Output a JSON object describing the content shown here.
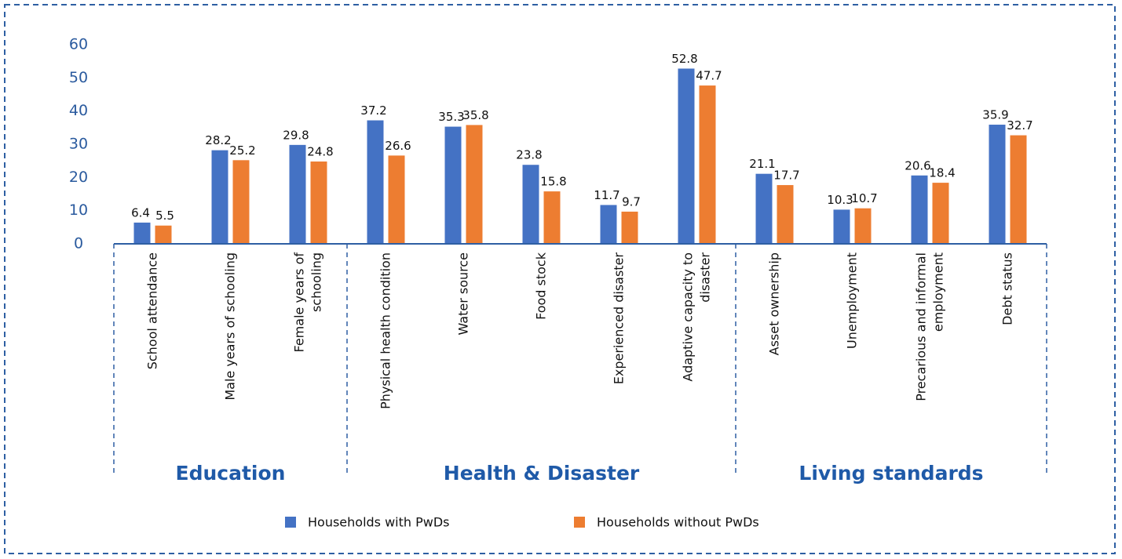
{
  "chart_data": {
    "type": "bar",
    "groups": [
      {
        "name": "Education",
        "categories": [
          "School attendance",
          "Male years of schooling",
          "Female years of\nschooling"
        ]
      },
      {
        "name": "Health & Disaster",
        "categories": [
          "Physical health condition",
          "Water source",
          "Food stock",
          "Experienced disaster",
          "Adaptive capacity to\ndisaster"
        ]
      },
      {
        "name": "Living standards",
        "categories": [
          "Asset ownership",
          "Unemployment",
          "Precarious and informal\nemployment",
          "Debt status"
        ]
      }
    ],
    "series": [
      {
        "name": "Households with PwDs",
        "color": "#4472c4",
        "values": [
          6.4,
          28.2,
          29.8,
          37.2,
          35.3,
          23.8,
          11.7,
          52.8,
          21.1,
          10.3,
          20.6,
          35.9
        ]
      },
      {
        "name": "Households without PwDs",
        "color": "#ed7d31",
        "values": [
          5.5,
          25.2,
          24.8,
          26.6,
          35.8,
          15.8,
          9.7,
          47.7,
          17.7,
          10.7,
          18.4,
          32.7
        ]
      }
    ],
    "ylim": [
      0,
      60
    ],
    "yticks": [
      0,
      10,
      20,
      30,
      40,
      50,
      60
    ],
    "grid": false,
    "legend": "bottom"
  }
}
